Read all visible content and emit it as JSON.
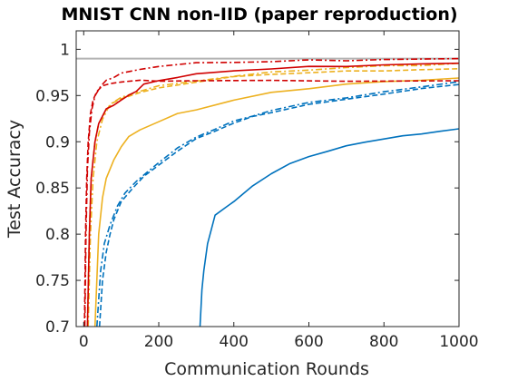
{
  "chart_data": {
    "type": "line",
    "title": "MNIST CNN non-IID (paper reproduction)",
    "xlabel": "Communication Rounds",
    "ylabel": "Test Accuracy",
    "xlim": [
      -20,
      1000
    ],
    "ylim": [
      0.7,
      1.02
    ],
    "xticks": [
      0,
      200,
      400,
      600,
      800,
      1000
    ],
    "yticks": [
      0.7,
      0.75,
      0.8,
      0.85,
      0.9,
      0.95,
      1
    ],
    "xtick_labels": [
      "0",
      "200",
      "400",
      "600",
      "800",
      "1000"
    ],
    "ytick_labels": [
      "0.7",
      "0.75",
      "0.8",
      "0.85",
      "0.9",
      "0.95",
      "1"
    ],
    "grid": false,
    "legend": "none",
    "reference_line": {
      "y": 0.99,
      "color": "#b3b3b3"
    },
    "series": [
      {
        "color": "#0072bd",
        "dash": "solid",
        "x": [
          310,
          315,
          320,
          330,
          340,
          350,
          380,
          400,
          450,
          500,
          550,
          600,
          650,
          700,
          750,
          800,
          850,
          900,
          950,
          1000
        ],
        "y": [
          0.7,
          0.74,
          0.76,
          0.79,
          0.805,
          0.82,
          0.83,
          0.835,
          0.852,
          0.866,
          0.876,
          0.884,
          0.89,
          0.895,
          0.9,
          0.903,
          0.906,
          0.909,
          0.911,
          0.914
        ]
      },
      {
        "color": "#0072bd",
        "dash": "dashed",
        "x": [
          42,
          50,
          60,
          70,
          80,
          100,
          130,
          160,
          200,
          250,
          300,
          350,
          400,
          450,
          500,
          600,
          700,
          800,
          900,
          1000
        ],
        "y": [
          0.7,
          0.75,
          0.78,
          0.8,
          0.815,
          0.835,
          0.85,
          0.862,
          0.875,
          0.89,
          0.903,
          0.912,
          0.92,
          0.927,
          0.932,
          0.94,
          0.946,
          0.952,
          0.957,
          0.962
        ]
      },
      {
        "color": "#0072bd",
        "dash": "dashdot",
        "x": [
          35,
          45,
          55,
          70,
          90,
          110,
          140,
          170,
          200,
          250,
          300,
          350,
          400,
          450,
          500,
          600,
          700,
          800,
          900,
          1000
        ],
        "y": [
          0.7,
          0.76,
          0.79,
          0.81,
          0.83,
          0.845,
          0.857,
          0.867,
          0.878,
          0.893,
          0.905,
          0.914,
          0.922,
          0.928,
          0.934,
          0.942,
          0.948,
          0.954,
          0.959,
          0.965
        ]
      },
      {
        "color": "#edb120",
        "dash": "solid",
        "x": [
          30,
          40,
          50,
          60,
          80,
          100,
          120,
          150,
          200,
          250,
          300,
          400,
          500,
          600,
          700,
          800,
          900,
          1000
        ],
        "y": [
          0.7,
          0.8,
          0.84,
          0.86,
          0.88,
          0.895,
          0.905,
          0.913,
          0.922,
          0.93,
          0.935,
          0.945,
          0.953,
          0.958,
          0.962,
          0.965,
          0.967,
          0.969
        ]
      },
      {
        "color": "#edb120",
        "dash": "dashed",
        "x": [
          10,
          15,
          20,
          30,
          40,
          60,
          80,
          100,
          150,
          200,
          300,
          400,
          500,
          600,
          700,
          800,
          900,
          1000
        ],
        "y": [
          0.7,
          0.8,
          0.86,
          0.9,
          0.92,
          0.935,
          0.942,
          0.947,
          0.953,
          0.958,
          0.965,
          0.97,
          0.973,
          0.975,
          0.976,
          0.977,
          0.978,
          0.979
        ]
      },
      {
        "color": "#edb120",
        "dash": "dashdot",
        "x": [
          12,
          18,
          25,
          35,
          50,
          70,
          100,
          150,
          200,
          300,
          400,
          500,
          600,
          700,
          800,
          900,
          1000
        ],
        "y": [
          0.7,
          0.8,
          0.86,
          0.9,
          0.925,
          0.94,
          0.948,
          0.955,
          0.96,
          0.966,
          0.971,
          0.975,
          0.978,
          0.98,
          0.982,
          0.983,
          0.985
        ]
      },
      {
        "color": "#d00000",
        "dash": "solid",
        "x": [
          10,
          15,
          20,
          30,
          40,
          60,
          80,
          100,
          120,
          140,
          160,
          200,
          250,
          300,
          400,
          500,
          600,
          700,
          800,
          900,
          1000
        ],
        "y": [
          0.7,
          0.8,
          0.86,
          0.9,
          0.92,
          0.935,
          0.94,
          0.945,
          0.95,
          0.955,
          0.962,
          0.966,
          0.97,
          0.973,
          0.977,
          0.979,
          0.981,
          0.982,
          0.983,
          0.984,
          0.985
        ]
      },
      {
        "color": "#d00000",
        "dash": "dashed",
        "x": [
          2,
          5,
          8,
          12,
          18,
          25,
          35,
          50,
          70,
          100,
          150,
          200,
          300,
          500,
          700,
          1000
        ],
        "y": [
          0.7,
          0.8,
          0.86,
          0.9,
          0.93,
          0.945,
          0.955,
          0.96,
          0.963,
          0.965,
          0.966,
          0.966,
          0.966,
          0.966,
          0.966,
          0.966
        ]
      },
      {
        "color": "#d00000",
        "dash": "dashdot",
        "x": [
          3,
          6,
          10,
          15,
          22,
          30,
          45,
          60,
          80,
          100,
          150,
          200,
          300,
          400,
          500,
          600,
          700,
          800,
          900,
          1000
        ],
        "y": [
          0.7,
          0.8,
          0.87,
          0.91,
          0.935,
          0.95,
          0.96,
          0.966,
          0.97,
          0.974,
          0.978,
          0.982,
          0.985,
          0.986,
          0.987,
          0.988,
          0.988,
          0.989,
          0.989,
          0.99
        ]
      }
    ]
  }
}
